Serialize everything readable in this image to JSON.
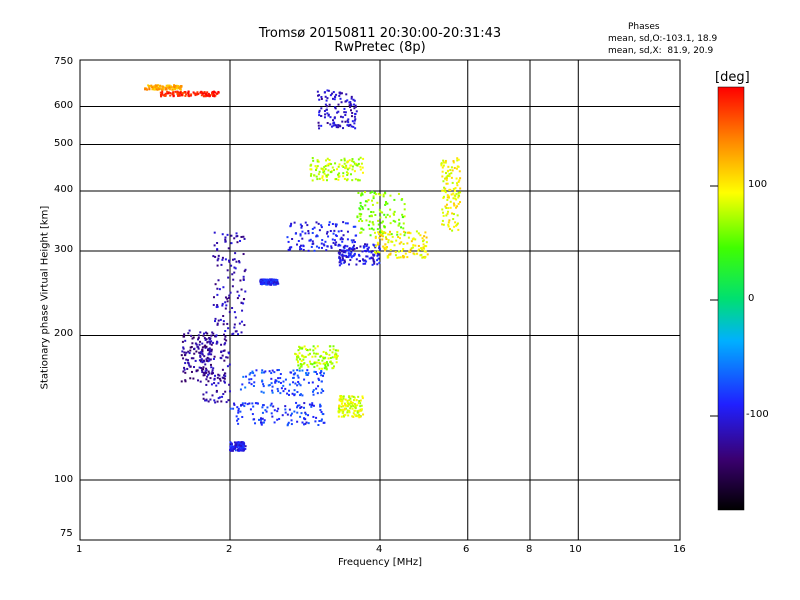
{
  "header": {
    "title_line1": "Tromsø 20150811 20:30:00-20:31:43",
    "title_line2": "RwPretec (8p)",
    "phase_title": "Phases",
    "phase_o": "mean, sd,O:-103.1, 18.9",
    "phase_x": "mean, sd,X:  81.9, 20.9"
  },
  "colorbar": {
    "unit": "[deg]",
    "ticks": [
      "100",
      "0",
      "-100"
    ]
  },
  "chart_data": {
    "type": "scatter",
    "title": "Tromsø 20150811 20:30:00-20:31:43",
    "subtitle": "RwPretec (8p)",
    "xlabel": "Frequency [MHz]",
    "ylabel": "Stationary phase Virtual Height [km]",
    "x_scale": "log",
    "y_scale": "log",
    "xlim": [
      1,
      16
    ],
    "ylim": [
      75,
      750
    ],
    "x_ticks": [
      "1",
      "2",
      "4",
      "6",
      "8",
      "10",
      "16"
    ],
    "y_ticks": [
      "75",
      "100",
      "200",
      "300",
      "400",
      "500",
      "600",
      "750"
    ],
    "color_scale": "phase [deg], -180 to 180, rainbow",
    "grid": true,
    "series": [
      {
        "f": [
          1.35,
          1.6
        ],
        "h": [
          650,
          665
        ],
        "phase": 120
      },
      {
        "f": [
          1.45,
          1.9
        ],
        "h": [
          630,
          645
        ],
        "phase": 170
      },
      {
        "f": [
          1.6,
          1.85
        ],
        "h": [
          160,
          205
        ],
        "phase": -125
      },
      {
        "f": [
          1.75,
          2.0
        ],
        "h": [
          145,
          200
        ],
        "phase": -120
      },
      {
        "f": [
          1.85,
          2.15
        ],
        "h": [
          200,
          330
        ],
        "phase": -115
      },
      {
        "f": [
          2.0,
          2.15
        ],
        "h": [
          115,
          120
        ],
        "phase": -95
      },
      {
        "f": [
          2.0,
          3.1
        ],
        "h": [
          130,
          145
        ],
        "phase": -85
      },
      {
        "f": [
          2.1,
          3.1
        ],
        "h": [
          150,
          170
        ],
        "phase": -75
      },
      {
        "f": [
          2.3,
          2.5
        ],
        "h": [
          255,
          262
        ],
        "phase": -90
      },
      {
        "f": [
          2.7,
          3.3
        ],
        "h": [
          170,
          190
        ],
        "phase": 70
      },
      {
        "f": [
          2.6,
          3.6
        ],
        "h": [
          300,
          345
        ],
        "phase": -95
      },
      {
        "f": [
          2.9,
          3.7
        ],
        "h": [
          420,
          470
        ],
        "phase": 75
      },
      {
        "f": [
          3.0,
          3.6
        ],
        "h": [
          540,
          650
        ],
        "phase": -110
      },
      {
        "f": [
          3.3,
          3.7
        ],
        "h": [
          135,
          150
        ],
        "phase": 80
      },
      {
        "f": [
          3.3,
          4.0
        ],
        "h": [
          280,
          310
        ],
        "phase": -100
      },
      {
        "f": [
          3.6,
          4.5
        ],
        "h": [
          320,
          400
        ],
        "phase": 60
      },
      {
        "f": [
          3.9,
          5.0
        ],
        "h": [
          290,
          330
        ],
        "phase": 95
      },
      {
        "f": [
          5.3,
          5.8
        ],
        "h": [
          330,
          470
        ],
        "phase": 90
      }
    ]
  }
}
